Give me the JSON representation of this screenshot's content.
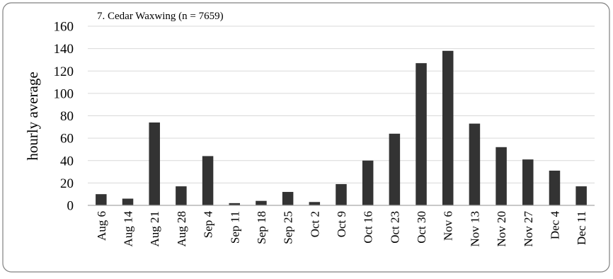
{
  "chart_data": {
    "type": "bar",
    "title": "7. Cedar Waxwing (n = 7659)",
    "xlabel": "",
    "ylabel": "hourly average",
    "ylim": [
      0,
      160
    ],
    "yticks": [
      0,
      20,
      40,
      60,
      80,
      100,
      120,
      140,
      160
    ],
    "grid": true,
    "legend": "none",
    "categories": [
      "Aug 6",
      "Aug 14",
      "Aug 21",
      "Aug 28",
      "Sep 4",
      "Sep 11",
      "Sep 18",
      "Sep 25",
      "Oct 2",
      "Oct 9",
      "Oct 16",
      "Oct 23",
      "Oct 30",
      "Nov 6",
      "Nov 13",
      "Nov 20",
      "Nov 27",
      "Dec 4",
      "Dec 11"
    ],
    "values": [
      10,
      6,
      74,
      17,
      44,
      2,
      4,
      12,
      3,
      19,
      40,
      64,
      127,
      138,
      73,
      52,
      41,
      31,
      17
    ],
    "colors": {
      "bar": "#333333",
      "grid": "#d9d9d9",
      "axis": "#a6a6a6",
      "frame": "#808080"
    }
  }
}
